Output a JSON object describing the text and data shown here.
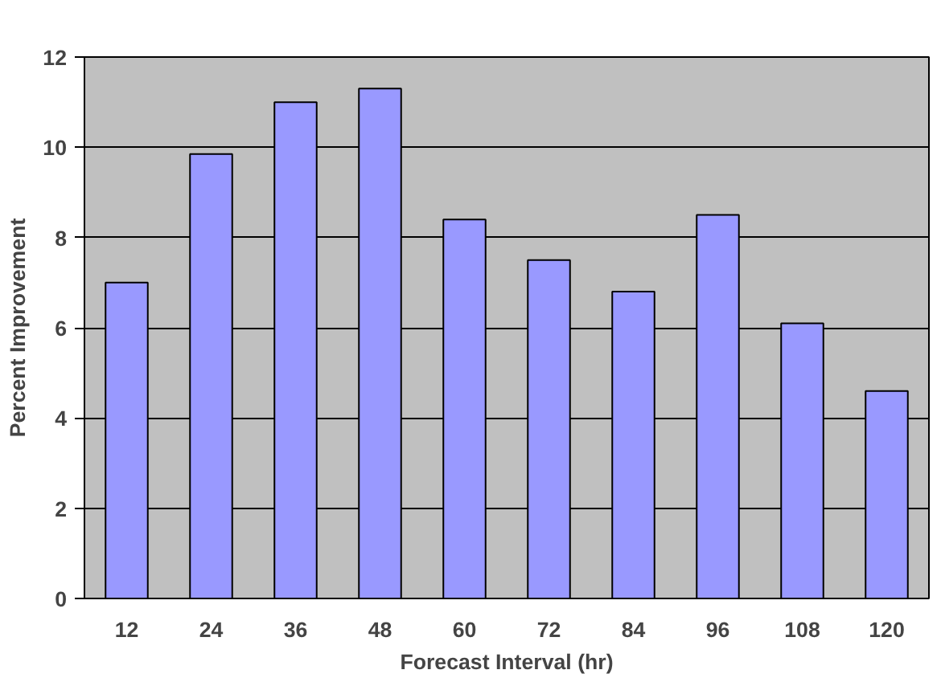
{
  "chart_data": {
    "type": "bar",
    "xlabel": "Forecast Interval (hr)",
    "ylabel": "Percent Improvement",
    "categories": [
      "12",
      "24",
      "36",
      "48",
      "60",
      "72",
      "84",
      "96",
      "108",
      "120"
    ],
    "values": [
      7.0,
      9.85,
      11.0,
      11.3,
      8.4,
      7.5,
      6.8,
      8.5,
      6.1,
      4.6
    ],
    "color": "#9999ff",
    "ylim": [
      0,
      12
    ],
    "yticks": [
      0,
      2,
      4,
      6,
      8,
      10,
      12
    ],
    "grid": "y"
  }
}
